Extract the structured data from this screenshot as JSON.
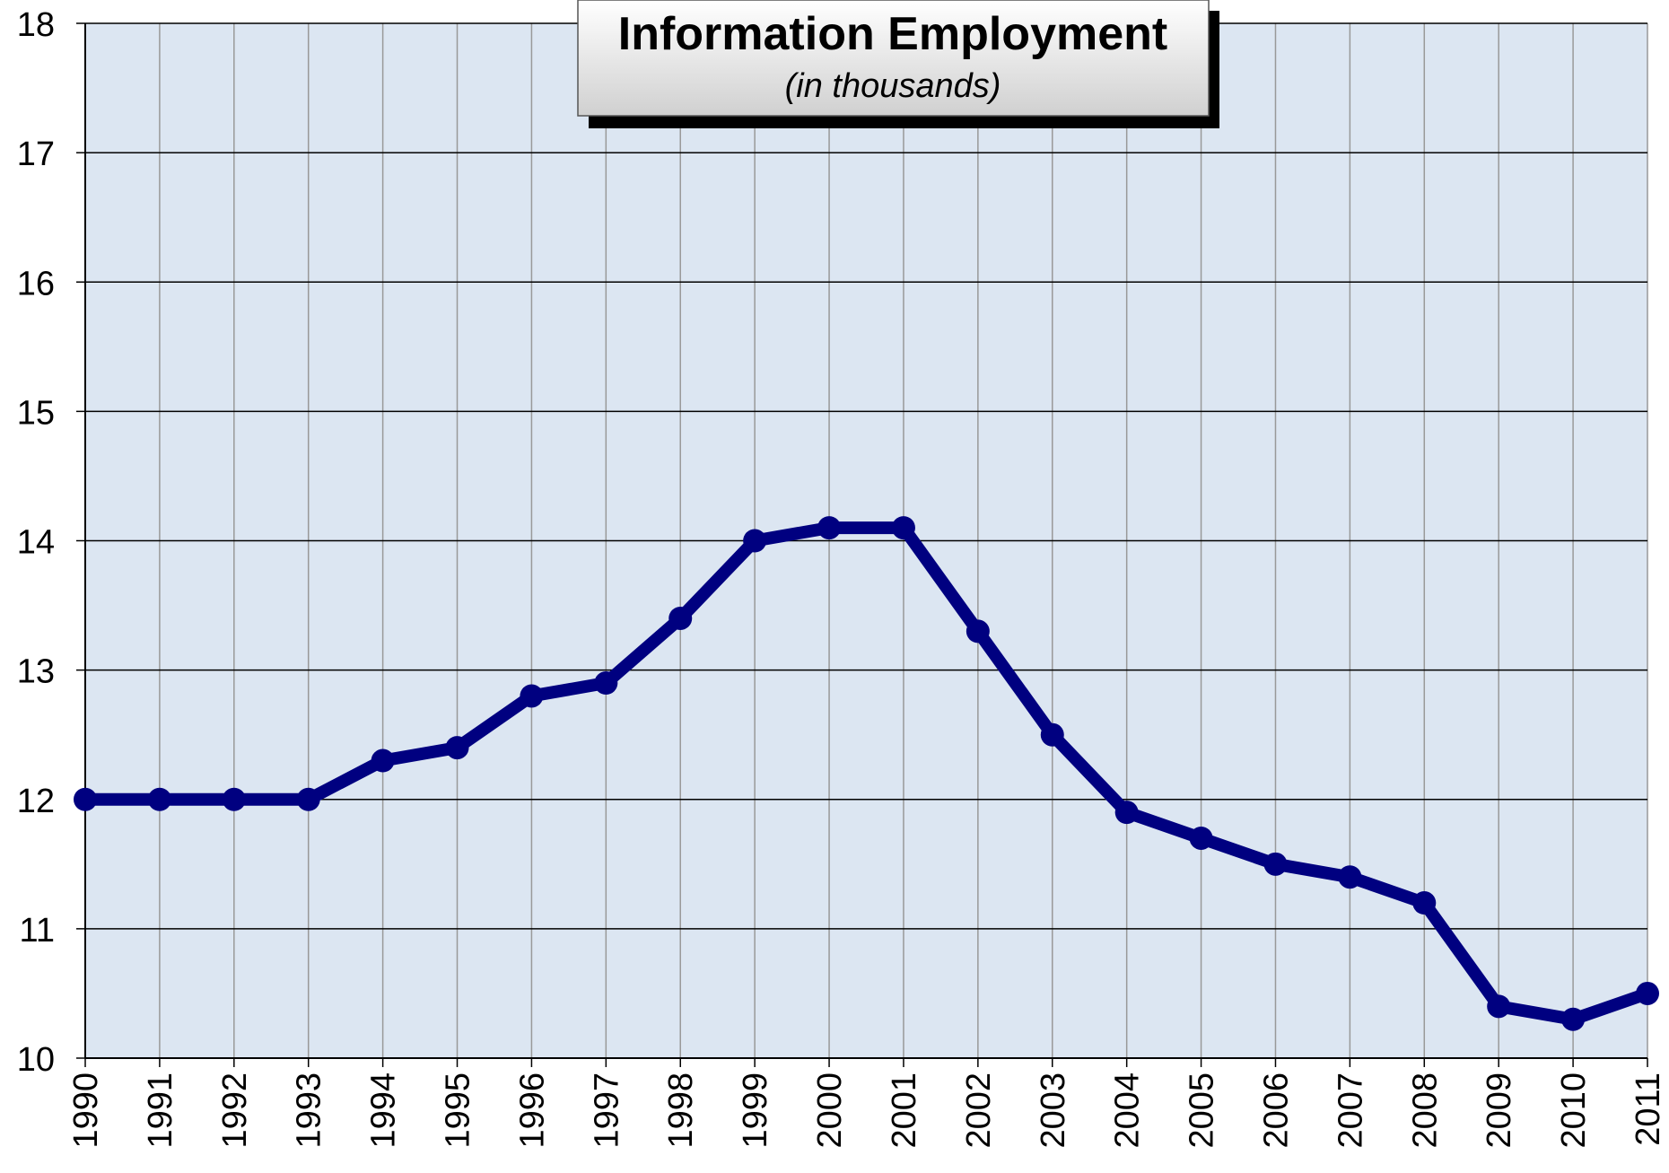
{
  "chart_data": {
    "type": "line",
    "title": "Information Employment",
    "subtitle": "(in thousands)",
    "categories": [
      "1990",
      "1991",
      "1992",
      "1993",
      "1994",
      "1995",
      "1996",
      "1997",
      "1998",
      "1999",
      "2000",
      "2001",
      "2002",
      "2003",
      "2004",
      "2005",
      "2006",
      "2007",
      "2008",
      "2009",
      "2010",
      "2011"
    ],
    "series": [
      {
        "name": "Information Employment",
        "color": "#000080",
        "values": [
          12,
          12,
          12,
          12,
          12.3,
          12.4,
          12.8,
          12.9,
          13.4,
          14.0,
          14.1,
          14.1,
          13.3,
          12.5,
          11.9,
          11.7,
          11.5,
          11.4,
          11.2,
          10.4,
          10.3,
          10.5
        ]
      }
    ],
    "ylim": [
      10,
      18
    ],
    "yticks": [
      10,
      11,
      12,
      13,
      14,
      15,
      16,
      17,
      18
    ],
    "grid": true
  }
}
